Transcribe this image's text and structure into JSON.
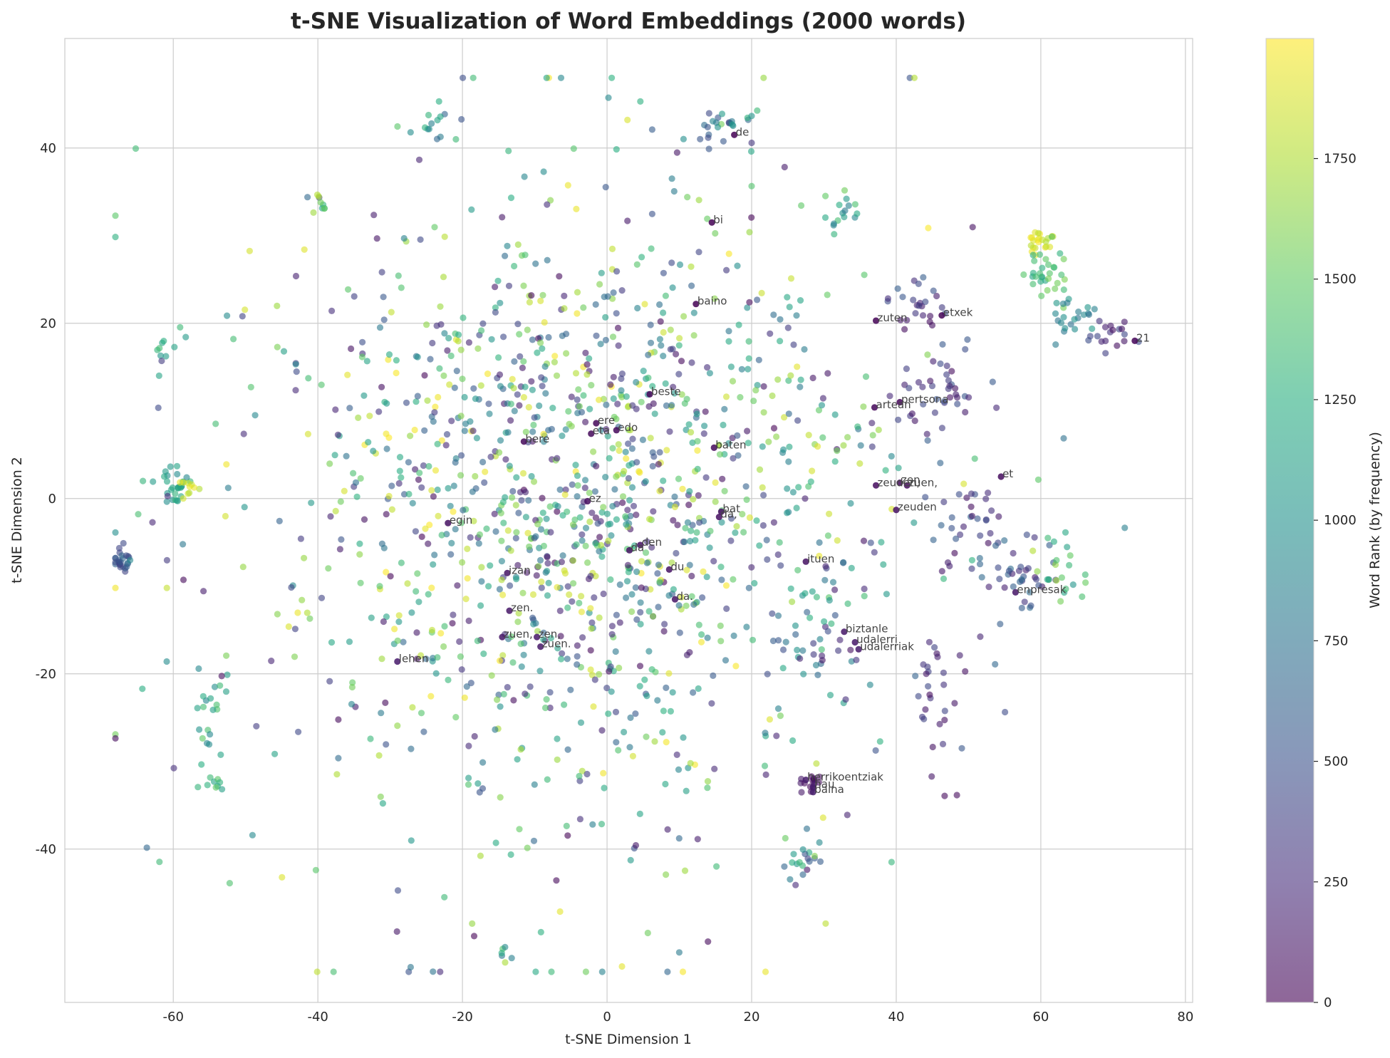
{
  "chart_data": {
    "type": "scatter",
    "title": "t-SNE Visualization of Word Embeddings (2000 words)",
    "xlabel": "t-SNE Dimension 1",
    "ylabel": "t-SNE Dimension 2",
    "xlim": [
      -75,
      81
    ],
    "ylim": [
      -57.5,
      52.5
    ],
    "xticks": [
      -60,
      -40,
      -20,
      0,
      20,
      40,
      60,
      80
    ],
    "yticks": [
      -40,
      -20,
      0,
      20,
      40
    ],
    "grid": true,
    "point_count": 2000,
    "colormap": "viridis",
    "point_alpha": 0.6,
    "colorbar": {
      "label": "Word Rank (by frequency)",
      "range": [
        0,
        1999
      ],
      "ticks": [
        0,
        250,
        500,
        750,
        1000,
        1250,
        1500,
        1750
      ]
    },
    "clusters": [
      {
        "x": -67,
        "y": -7,
        "sx": 0.6,
        "sy": 0.8,
        "n": 25,
        "rank": [
          400,
          700
        ]
      },
      {
        "x": -60,
        "y": 1.5,
        "sx": 1.2,
        "sy": 1.2,
        "n": 30,
        "rank": [
          900,
          1350
        ]
      },
      {
        "x": -61,
        "y": 17,
        "sx": 1.5,
        "sy": 1.0,
        "n": 10,
        "rank": [
          1000,
          1400
        ]
      },
      {
        "x": -58,
        "y": 1.5,
        "sx": 0.8,
        "sy": 0.8,
        "n": 10,
        "rank": [
          1750,
          1999
        ]
      },
      {
        "x": -55,
        "y": -24,
        "sx": 1.2,
        "sy": 2.5,
        "n": 20,
        "rank": [
          900,
          1500
        ]
      },
      {
        "x": -55,
        "y": -32,
        "sx": 1.0,
        "sy": 1.0,
        "n": 10,
        "rank": [
          1100,
          1700
        ]
      },
      {
        "x": -24,
        "y": 42.5,
        "sx": 1.2,
        "sy": 1.0,
        "n": 14,
        "rank": [
          500,
          1500
        ]
      },
      {
        "x": 17,
        "y": 43,
        "sx": 2.5,
        "sy": 1.2,
        "n": 25,
        "rank": [
          200,
          1650
        ]
      },
      {
        "x": 60,
        "y": 29.5,
        "sx": 1.0,
        "sy": 0.8,
        "n": 22,
        "rank": [
          1750,
          1999
        ]
      },
      {
        "x": 61,
        "y": 25.5,
        "sx": 1.5,
        "sy": 1.5,
        "n": 30,
        "rank": [
          1150,
          1600
        ]
      },
      {
        "x": 65,
        "y": 21,
        "sx": 2.0,
        "sy": 1.5,
        "n": 22,
        "rank": [
          700,
          1100
        ]
      },
      {
        "x": 70,
        "y": 18.5,
        "sx": 1.8,
        "sy": 0.8,
        "n": 18,
        "rank": [
          50,
          500
        ]
      },
      {
        "x": 43,
        "y": 22,
        "sx": 2.5,
        "sy": 2.0,
        "n": 25,
        "rank": [
          50,
          600
        ]
      },
      {
        "x": 46,
        "y": 12,
        "sx": 3.0,
        "sy": 3.0,
        "n": 40,
        "rank": [
          50,
          600
        ]
      },
      {
        "x": 51,
        "y": -3,
        "sx": 3.0,
        "sy": 3.0,
        "n": 35,
        "rank": [
          50,
          700
        ]
      },
      {
        "x": 57,
        "y": -9,
        "sx": 3.0,
        "sy": 2.5,
        "n": 35,
        "rank": [
          100,
          700
        ]
      },
      {
        "x": 63,
        "y": -7,
        "sx": 2.0,
        "sy": 2.0,
        "n": 20,
        "rank": [
          1000,
          1800
        ]
      },
      {
        "x": 45,
        "y": -21,
        "sx": 1.5,
        "sy": 3.0,
        "n": 25,
        "rank": [
          50,
          500
        ]
      },
      {
        "x": 28,
        "y": -32.5,
        "sx": 0.8,
        "sy": 0.6,
        "n": 15,
        "rank": [
          10,
          150
        ]
      },
      {
        "x": 27,
        "y": -41,
        "sx": 1.5,
        "sy": 1.5,
        "n": 20,
        "rank": [
          100,
          1700
        ]
      },
      {
        "x": -14,
        "y": -52,
        "sx": 0.5,
        "sy": 0.8,
        "n": 6,
        "rank": [
          600,
          1800
        ]
      },
      {
        "x": 30,
        "y": -15,
        "sx": 3.0,
        "sy": 4.0,
        "n": 40,
        "rank": [
          100,
          1500
        ]
      },
      {
        "x": 33,
        "y": 33,
        "sx": 1.5,
        "sy": 1.2,
        "n": 14,
        "rank": [
          800,
          1600
        ]
      },
      {
        "x": -40,
        "y": 33,
        "sx": 1.0,
        "sy": 1.2,
        "n": 10,
        "rank": [
          400,
          1800
        ]
      },
      {
        "x": -2,
        "y": 3,
        "sx": 18,
        "sy": 15,
        "n": 760,
        "rank": [
          0,
          1999
        ]
      },
      {
        "x": -5,
        "y": -5,
        "sx": 25,
        "sy": 22,
        "n": 600,
        "rank": [
          0,
          1999
        ]
      }
    ],
    "labeled_words": [
      {
        "word": "de",
        "x": 17.6,
        "y": 41.5
      },
      {
        "word": "bi",
        "x": 14.5,
        "y": 31.5
      },
      {
        "word": "baino",
        "x": 12.3,
        "y": 22.2
      },
      {
        "word": "zuten",
        "x": 37.2,
        "y": 20.3
      },
      {
        "word": "etxek",
        "x": 46.3,
        "y": 20.9
      },
      {
        "word": "21",
        "x": 73,
        "y": 18
      },
      {
        "word": "beste",
        "x": 5.9,
        "y": 11.9
      },
      {
        "word": "pertsona",
        "x": 40.5,
        "y": 11
      },
      {
        "word": "artean",
        "x": 37,
        "y": 10.4
      },
      {
        "word": "ere",
        "x": -1.5,
        "y": 8.6
      },
      {
        "word": "edo",
        "x": 1.3,
        "y": 7.8
      },
      {
        "word": "eta",
        "x": -2.2,
        "y": 7.4
      },
      {
        "word": "bere",
        "x": -11.5,
        "y": 6.5
      },
      {
        "word": "baten",
        "x": 14.8,
        "y": 5.8
      },
      {
        "word": "zen",
        "x": 40.5,
        "y": 1.8
      },
      {
        "word": "zuen,",
        "x": 41.5,
        "y": 1.5
      },
      {
        "word": "zeuden,",
        "x": 37.2,
        "y": 1.5
      },
      {
        "word": "et",
        "x": 54.5,
        "y": 2.5
      },
      {
        "word": "ez",
        "x": -2.7,
        "y": -0.3
      },
      {
        "word": "bat",
        "x": 15.8,
        "y": -1.5
      },
      {
        "word": "da,",
        "x": 15.5,
        "y": -2.1
      },
      {
        "word": "zeuden",
        "x": 40,
        "y": -1.3
      },
      {
        "word": "egin",
        "x": -22,
        "y": -2.8
      },
      {
        "word": "den",
        "x": 4.6,
        "y": -5.3
      },
      {
        "word": "da",
        "x": 3.1,
        "y": -5.9
      },
      {
        "word": "ituen",
        "x": 27.5,
        "y": -7.2
      },
      {
        "word": "du",
        "x": 8.6,
        "y": -8.1
      },
      {
        "word": "izan",
        "x": -13.8,
        "y": -8.5
      },
      {
        "word": "da.",
        "x": 9.4,
        "y": -11.5
      },
      {
        "word": "enpresak",
        "x": 56.5,
        "y": -10.7
      },
      {
        "word": "zen.",
        "x": -13.5,
        "y": -12.8
      },
      {
        "word": "biztanle",
        "x": 32.8,
        "y": -15.2
      },
      {
        "word": "zuen,",
        "x": -14.5,
        "y": -15.8
      },
      {
        "word": "zen,",
        "x": -9.7,
        "y": -15.8
      },
      {
        "word": "udalerri",
        "x": 34.3,
        "y": -16.4
      },
      {
        "word": "zuen.",
        "x": -9.2,
        "y": -16.9
      },
      {
        "word": "udalerriak",
        "x": 34.8,
        "y": -17.2
      },
      {
        "word": "lehen",
        "x": -29,
        "y": -18.6
      },
      {
        "word": "herrikoentziak",
        "x": 27.5,
        "y": -32.1
      },
      {
        "word": "hau",
        "x": 28.5,
        "y": -32.9
      },
      {
        "word": "baina",
        "x": 28.5,
        "y": -33.5
      }
    ]
  }
}
